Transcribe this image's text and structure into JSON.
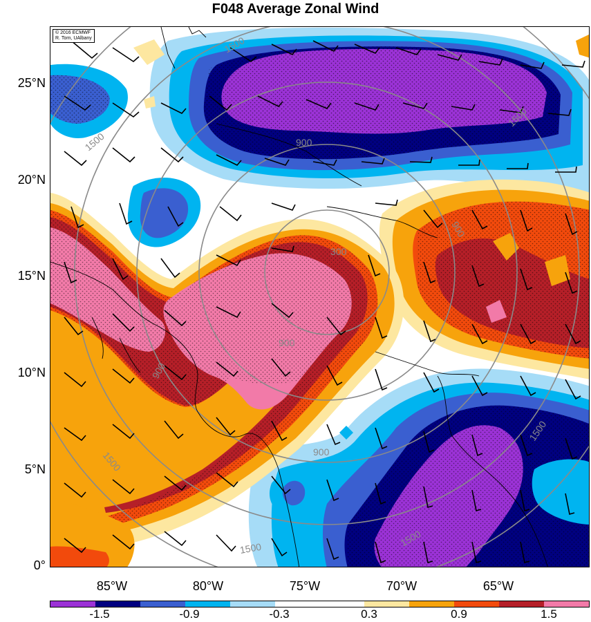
{
  "title": "F048 Average Zonal Wind",
  "credit": {
    "line1": "© 2016 ECMWF",
    "line2": "R. Torn, UAlbany"
  },
  "axes": {
    "lat_ticks": [
      "25°N",
      "20°N",
      "15°N",
      "10°N",
      "5°N",
      "0°"
    ],
    "lon_ticks": [
      "85°W",
      "80°W",
      "75°W",
      "70°W",
      "65°W"
    ]
  },
  "contour_labels": [
    "1500",
    "900",
    "300",
    "900",
    "900",
    "1500",
    "1500",
    "1500",
    "900",
    "1500",
    "1500",
    "900",
    "1500"
  ],
  "colorbar": {
    "labels": [
      "-1.5",
      "-0.9",
      "-0.3",
      "0.3",
      "0.9",
      "1.5"
    ],
    "colors": [
      "#9b32d6",
      "#000080",
      "#3a5fd0",
      "#00b4f0",
      "#a6dcf7",
      "#ffffff",
      "#ffffff",
      "#fde7a0",
      "#f7a30c",
      "#f24a0c",
      "#b51f28",
      "#f27aa8"
    ]
  }
}
